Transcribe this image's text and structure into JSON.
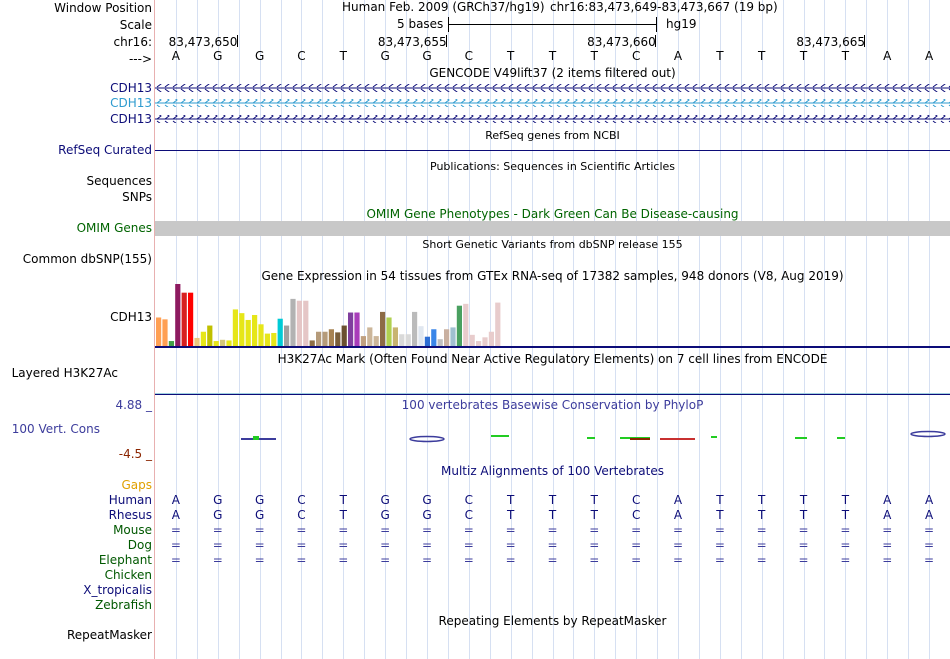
{
  "labels": {
    "window_position": "Window Position",
    "scale": "Scale",
    "chrom": "chr16:",
    "arrow": "--->",
    "cdh13_a": "CDH13",
    "cdh13_b": "CDH13",
    "cdh13_c": "CDH13",
    "refseq": "RefSeq Curated",
    "sequences": "Sequences",
    "snps": "SNPs",
    "omim": "OMIM Genes",
    "dbsnp": "Common dbSNP(155)",
    "gtex_gene": "CDH13",
    "h3k27ac": "Layered H3K27Ac",
    "cons_max": "4.88 _",
    "cons_label": "100 Vert. Cons",
    "cons_min": "-4.5 _",
    "gaps": "Gaps",
    "human": "Human",
    "rhesus": "Rhesus",
    "mouse": "Mouse",
    "dog": "Dog",
    "elephant": "Elephant",
    "chicken": "Chicken",
    "xtrop": "X_tropicalis",
    "zebrafish": "Zebrafish",
    "repeatmasker": "RepeatMasker"
  },
  "header": {
    "assembly": "Human Feb. 2009 (GRCh37/hg19)",
    "position": "chr16:83,473,649-83,473,667 (19 bp)",
    "scale_label": "5 bases",
    "scale_db": "hg19",
    "ticks": [
      "83,473,650",
      "83,473,655",
      "83,473,660",
      "83,473,665"
    ]
  },
  "sequence": {
    "bases": [
      "A",
      "G",
      "G",
      "C",
      "T",
      "G",
      "G",
      "C",
      "T",
      "T",
      "T",
      "C",
      "A",
      "T",
      "T",
      "T",
      "T",
      "A",
      "A"
    ],
    "rhesus": [
      "A",
      "G",
      "G",
      "C",
      "T",
      "G",
      "G",
      "C",
      "T",
      "T",
      "T",
      "C",
      "A",
      "T",
      "T",
      "T",
      "T",
      "A",
      "A"
    ],
    "dash": "="
  },
  "titles": {
    "gencode": "GENCODE V49lift37 (2 items filtered out)",
    "refseq": "RefSeq genes from NCBI",
    "publications": "Publications: Sequences in Scientific Articles",
    "omim": "OMIM Gene Phenotypes - Dark Green Can Be Disease-causing",
    "dbsnp": "Short Genetic Variants from dbSNP release 155",
    "gtex": "Gene Expression in 54 tissues from GTEx RNA-seq of 17382 samples, 948 donors (V8, Aug 2019)",
    "h3k27ac": "H3K27Ac Mark (Often Found Near Active Regulatory Elements) on 7 cell lines from ENCODE",
    "cons": "100 vertebrates Basewise Conservation by PhyloP",
    "multiz": "Multiz Alignments of 100 Vertebrates",
    "repeatmasker": "Repeating Elements by RepeatMasker"
  },
  "gtex": {
    "values": [
      0.46,
      0.43,
      0.08,
      1.0,
      0.86,
      0.86,
      0.13,
      0.23,
      0.33,
      0.08,
      0.1,
      0.09,
      0.59,
      0.53,
      0.42,
      0.5,
      0.35,
      0.2,
      0.21,
      0.44,
      0.33,
      0.76,
      0.73,
      0.73,
      0.09,
      0.23,
      0.23,
      0.27,
      0.22,
      0.33,
      0.54,
      0.54,
      0.16,
      0.3,
      0.16,
      0.55,
      0.46,
      0.3,
      0.19,
      0.19,
      0.55,
      0.32,
      0.15,
      0.27,
      0.11,
      0.27,
      0.3,
      0.65,
      0.68,
      0.18,
      0.08,
      0.14,
      0.23,
      0.7
    ],
    "colors": [
      "#ff9f53",
      "#ff9f53",
      "#43a047",
      "#8d1a60",
      "#d82020",
      "#ff0000",
      "#ebc77f",
      "#e6e619",
      "#c0c000",
      "#e6e619",
      "#d4c87a",
      "#e6e619",
      "#e6e619",
      "#e6e619",
      "#e6e619",
      "#e6e619",
      "#e6e619",
      "#e6e619",
      "#e6e619",
      "#00cbd6",
      "#a0a0a0",
      "#b2b2b2",
      "#e5c6c6",
      "#e5c6c6",
      "#8f6f46",
      "#b59b7a",
      "#b59b7a",
      "#a88352",
      "#7a5e3a",
      "#6a5030",
      "#7f3e9e",
      "#a83cba",
      "#c0a080",
      "#ccb69a",
      "#ccb69a",
      "#8d6b45",
      "#b0d050",
      "#c8b470",
      "#d9d9d9",
      "#d9d9d9",
      "#bbbbbb",
      "#e0e7f0",
      "#2d6ed4",
      "#3a86e8",
      "#c0c0c0",
      "#c9b0a0",
      "#a0c0d0",
      "#4aa060",
      "#e8cccc",
      "#e8cccc",
      "#e8cccc",
      "#e8cccc",
      "#e8cccc",
      "#e8cccc"
    ]
  },
  "colors": {
    "gencode": "#0c0c78",
    "gencode_alt": "#2e9bcf",
    "refseq": "#0c0c78",
    "omim_label": "#006400",
    "omim_bar": "#c8c8c8",
    "cons": "#3c3c9c",
    "cons_min": "#8b2500",
    "gaps": "#e0a000",
    "species_primate": "#0c0c78",
    "species_other": "#005800",
    "h3k27ac": "#9fd0e0",
    "gtex_gene": "#000000"
  }
}
